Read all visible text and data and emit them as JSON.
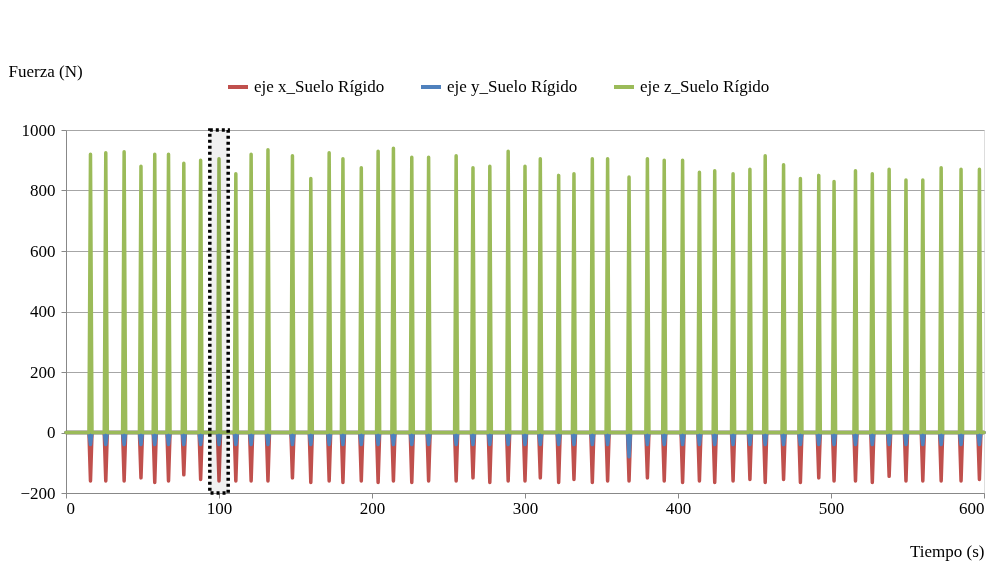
{
  "chart_data": {
    "type": "line",
    "xlabel": "Tiempo (s)",
    "ylabel": "Fuerza (N)",
    "x": [
      0,
      15,
      16,
      17,
      25,
      26,
      27,
      37,
      38,
      39,
      48,
      49,
      50,
      57,
      58,
      59,
      66,
      67,
      68,
      76,
      77,
      78,
      87,
      88,
      89,
      99,
      100,
      101,
      110,
      111,
      112,
      120,
      121,
      122,
      131,
      132,
      133,
      147,
      148,
      149,
      159,
      160,
      161,
      171,
      172,
      173,
      180,
      181,
      182,
      192,
      193,
      194,
      203,
      204,
      205,
      213,
      214,
      215,
      225,
      226,
      227,
      236,
      237,
      238,
      254,
      255,
      256,
      265,
      266,
      267,
      276,
      277,
      278,
      288,
      289,
      290,
      299,
      300,
      301,
      309,
      310,
      311,
      321,
      322,
      323,
      331,
      332,
      333,
      343,
      344,
      345,
      353,
      354,
      355,
      367,
      368,
      369,
      379,
      380,
      381,
      390,
      391,
      392,
      402,
      403,
      404,
      413,
      414,
      415,
      423,
      424,
      425,
      435,
      436,
      437,
      446,
      447,
      448,
      456,
      457,
      458,
      468,
      469,
      470,
      479,
      480,
      481,
      491,
      492,
      493,
      501,
      502,
      503,
      515,
      516,
      517,
      526,
      527,
      528,
      537,
      538,
      539,
      548,
      549,
      550,
      559,
      560,
      561,
      571,
      572,
      573,
      584,
      585,
      586,
      596,
      597,
      598,
      600
    ],
    "series": [
      {
        "name": "eje x_Suelo Rígido",
        "color": "#c0504d",
        "values": [
          0,
          0,
          -160,
          0,
          0,
          -160,
          0,
          0,
          -160,
          0,
          0,
          -150,
          0,
          0,
          -165,
          0,
          0,
          -160,
          0,
          0,
          -140,
          0,
          0,
          -155,
          0,
          0,
          -160,
          0,
          0,
          -160,
          0,
          0,
          -160,
          0,
          0,
          -160,
          0,
          0,
          -150,
          0,
          0,
          -165,
          0,
          0,
          -160,
          0,
          0,
          -165,
          0,
          0,
          -160,
          0,
          0,
          -165,
          0,
          0,
          -160,
          0,
          0,
          -165,
          0,
          0,
          -160,
          0,
          0,
          -160,
          0,
          0,
          -150,
          0,
          0,
          -165,
          0,
          0,
          -160,
          0,
          0,
          -160,
          0,
          0,
          -150,
          0,
          0,
          -165,
          0,
          0,
          -155,
          0,
          0,
          -165,
          0,
          0,
          -160,
          0,
          0,
          -160,
          0,
          0,
          -150,
          0,
          0,
          -160,
          0,
          0,
          -165,
          0,
          0,
          -160,
          0,
          0,
          -165,
          0,
          0,
          -160,
          0,
          0,
          -155,
          0,
          0,
          -165,
          0,
          0,
          -155,
          0,
          0,
          -165,
          0,
          0,
          -150,
          0,
          0,
          -160,
          0,
          0,
          -160,
          0,
          0,
          -165,
          0,
          0,
          -145,
          0,
          0,
          -160,
          0,
          0,
          -160,
          0,
          0,
          -160,
          0,
          0,
          -160,
          0,
          0,
          -155,
          0,
          0
        ]
      },
      {
        "name": "eje y_Suelo Rígido",
        "color": "#4f81bd",
        "values": [
          0,
          0,
          -40,
          0,
          0,
          -40,
          0,
          0,
          -40,
          0,
          0,
          -40,
          0,
          0,
          -40,
          0,
          0,
          -40,
          0,
          0,
          -40,
          0,
          0,
          -40,
          0,
          0,
          -40,
          0,
          0,
          -40,
          0,
          0,
          -40,
          0,
          0,
          -40,
          0,
          0,
          -40,
          0,
          0,
          -40,
          0,
          0,
          -40,
          0,
          0,
          -40,
          0,
          0,
          -40,
          0,
          0,
          -40,
          0,
          0,
          -40,
          0,
          0,
          -40,
          0,
          0,
          -40,
          0,
          0,
          -40,
          0,
          0,
          -40,
          0,
          0,
          -40,
          0,
          0,
          -40,
          0,
          0,
          -40,
          0,
          0,
          -40,
          0,
          0,
          -40,
          0,
          0,
          -40,
          0,
          0,
          -40,
          0,
          0,
          -40,
          0,
          0,
          -80,
          0,
          0,
          -40,
          0,
          0,
          -40,
          0,
          0,
          -40,
          0,
          0,
          -40,
          0,
          0,
          -40,
          0,
          0,
          -40,
          0,
          0,
          -40,
          0,
          0,
          -40,
          0,
          0,
          -40,
          0,
          0,
          -40,
          0,
          0,
          -40,
          0,
          0,
          -40,
          0,
          0,
          -40,
          0,
          0,
          -40,
          0,
          0,
          -40,
          0,
          0,
          -40,
          0,
          0,
          -40,
          0,
          0,
          -40,
          0,
          0,
          -40,
          0,
          0,
          -40,
          0,
          0
        ]
      },
      {
        "name": "eje z_Suelo Rígido",
        "color": "#9bbb59",
        "values": [
          0,
          0,
          920,
          0,
          0,
          925,
          0,
          0,
          928,
          0,
          0,
          880,
          0,
          0,
          920,
          0,
          0,
          920,
          0,
          0,
          890,
          0,
          0,
          900,
          0,
          0,
          905,
          0,
          0,
          855,
          0,
          0,
          920,
          0,
          0,
          935,
          0,
          0,
          915,
          0,
          0,
          840,
          0,
          0,
          925,
          0,
          0,
          905,
          0,
          0,
          875,
          0,
          0,
          930,
          0,
          0,
          940,
          0,
          0,
          910,
          0,
          0,
          910,
          0,
          0,
          915,
          0,
          0,
          875,
          0,
          0,
          880,
          0,
          0,
          930,
          0,
          0,
          880,
          0,
          0,
          905,
          0,
          0,
          850,
          0,
          0,
          855,
          0,
          0,
          905,
          0,
          0,
          905,
          0,
          0,
          845,
          0,
          0,
          905,
          0,
          0,
          900,
          0,
          0,
          900,
          0,
          0,
          860,
          0,
          0,
          865,
          0,
          0,
          855,
          0,
          0,
          870,
          0,
          0,
          915,
          0,
          0,
          885,
          0,
          0,
          840,
          0,
          0,
          850,
          0,
          0,
          830,
          0,
          0,
          865,
          0,
          0,
          855,
          0,
          0,
          870,
          0,
          0,
          835,
          0,
          0,
          835,
          0,
          0,
          875,
          0,
          0,
          870,
          0,
          0,
          870,
          0,
          0
        ]
      }
    ],
    "xlim": [
      0,
      600
    ],
    "xticks": [
      0,
      100,
      200,
      300,
      400,
      500,
      600
    ],
    "ylim": [
      -200,
      1000
    ],
    "yticks": [
      -200,
      0,
      200,
      400,
      600,
      800,
      1000
    ],
    "grid": "y",
    "legend": "top right",
    "line_style": "solid",
    "marker": "none",
    "bands": [
      {
        "axis": "x",
        "from": 94,
        "to": 106,
        "color": "#000000"
      }
    ]
  }
}
